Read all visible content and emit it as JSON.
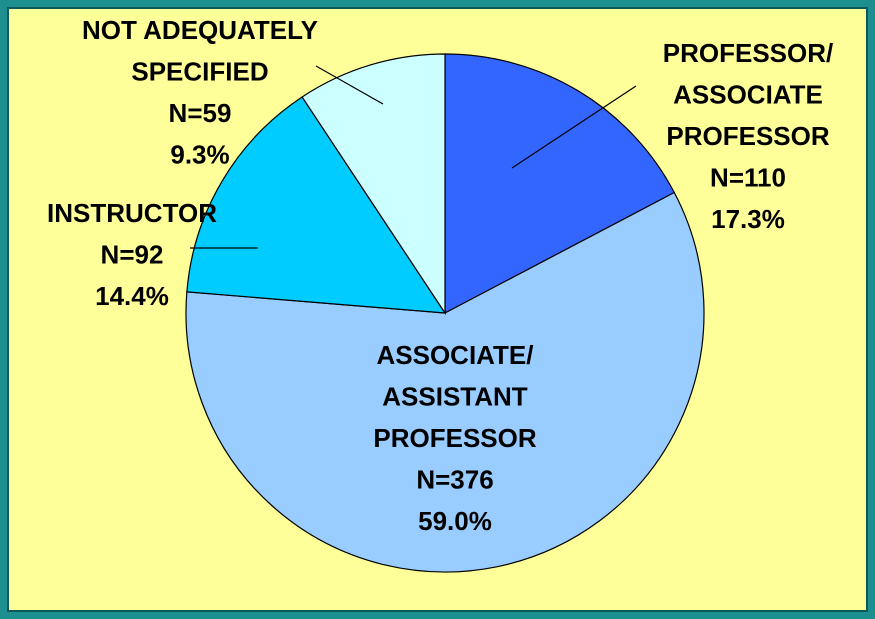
{
  "chart_data": {
    "type": "pie",
    "categories": [
      [
        "PROFESSOR/",
        "ASSOCIATE",
        "PROFESSOR"
      ],
      [
        "ASSOCIATE/",
        "ASSISTANT",
        "PROFESSOR"
      ],
      [
        "INSTRUCTOR"
      ],
      [
        "NOT ADEQUATELY",
        "SPECIFIED"
      ]
    ],
    "count_labels": [
      "N=110",
      "N=376",
      "N=92",
      "N=59"
    ],
    "values": [
      17.3,
      59.0,
      14.4,
      9.3
    ],
    "value_labels": [
      "17.3%",
      "59.0%",
      "14.4%",
      "9.3%"
    ],
    "colors": [
      "#3366ff",
      "#99ccff",
      "#00ccff",
      "#ccffff"
    ]
  }
}
